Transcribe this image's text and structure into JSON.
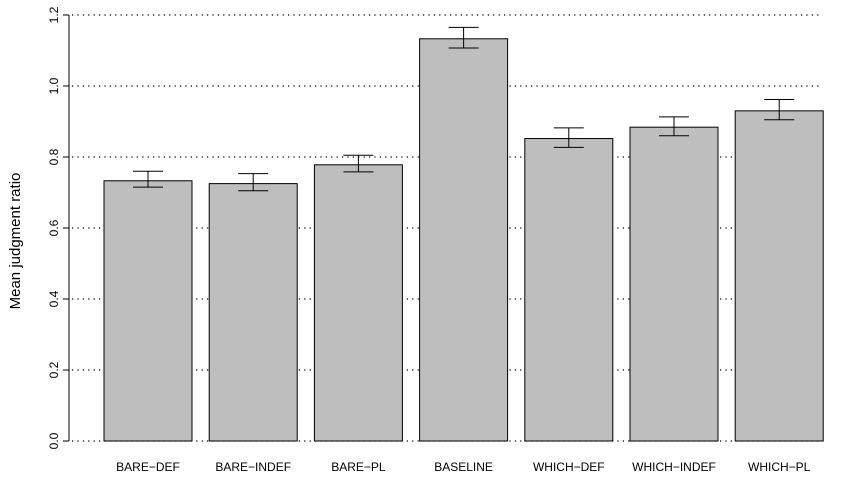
{
  "chart_data": {
    "type": "bar",
    "title": "",
    "xlabel": "",
    "ylabel": "Mean judgment ratio",
    "categories": [
      "BARE−DEF",
      "BARE−INDEF",
      "BARE−PL",
      "BASELINE",
      "WHICH−DEF",
      "WHICH−INDEF",
      "WHICH−PL"
    ],
    "values": [
      0.733,
      0.725,
      0.778,
      1.133,
      0.852,
      0.884,
      0.93
    ],
    "error_low": [
      0.715,
      0.705,
      0.758,
      1.107,
      0.827,
      0.86,
      0.905
    ],
    "error_high": [
      0.76,
      0.753,
      0.805,
      1.165,
      0.882,
      0.913,
      0.962
    ],
    "ylim": [
      0,
      1.2
    ],
    "yticks": [
      "0.0",
      "0.2",
      "0.4",
      "0.6",
      "0.8",
      "1.0",
      "1.2"
    ],
    "grid": "horizontal dotted",
    "bar_color": "#bebebe",
    "bar_edge_color": "#000000",
    "grid_color": "#000000"
  }
}
